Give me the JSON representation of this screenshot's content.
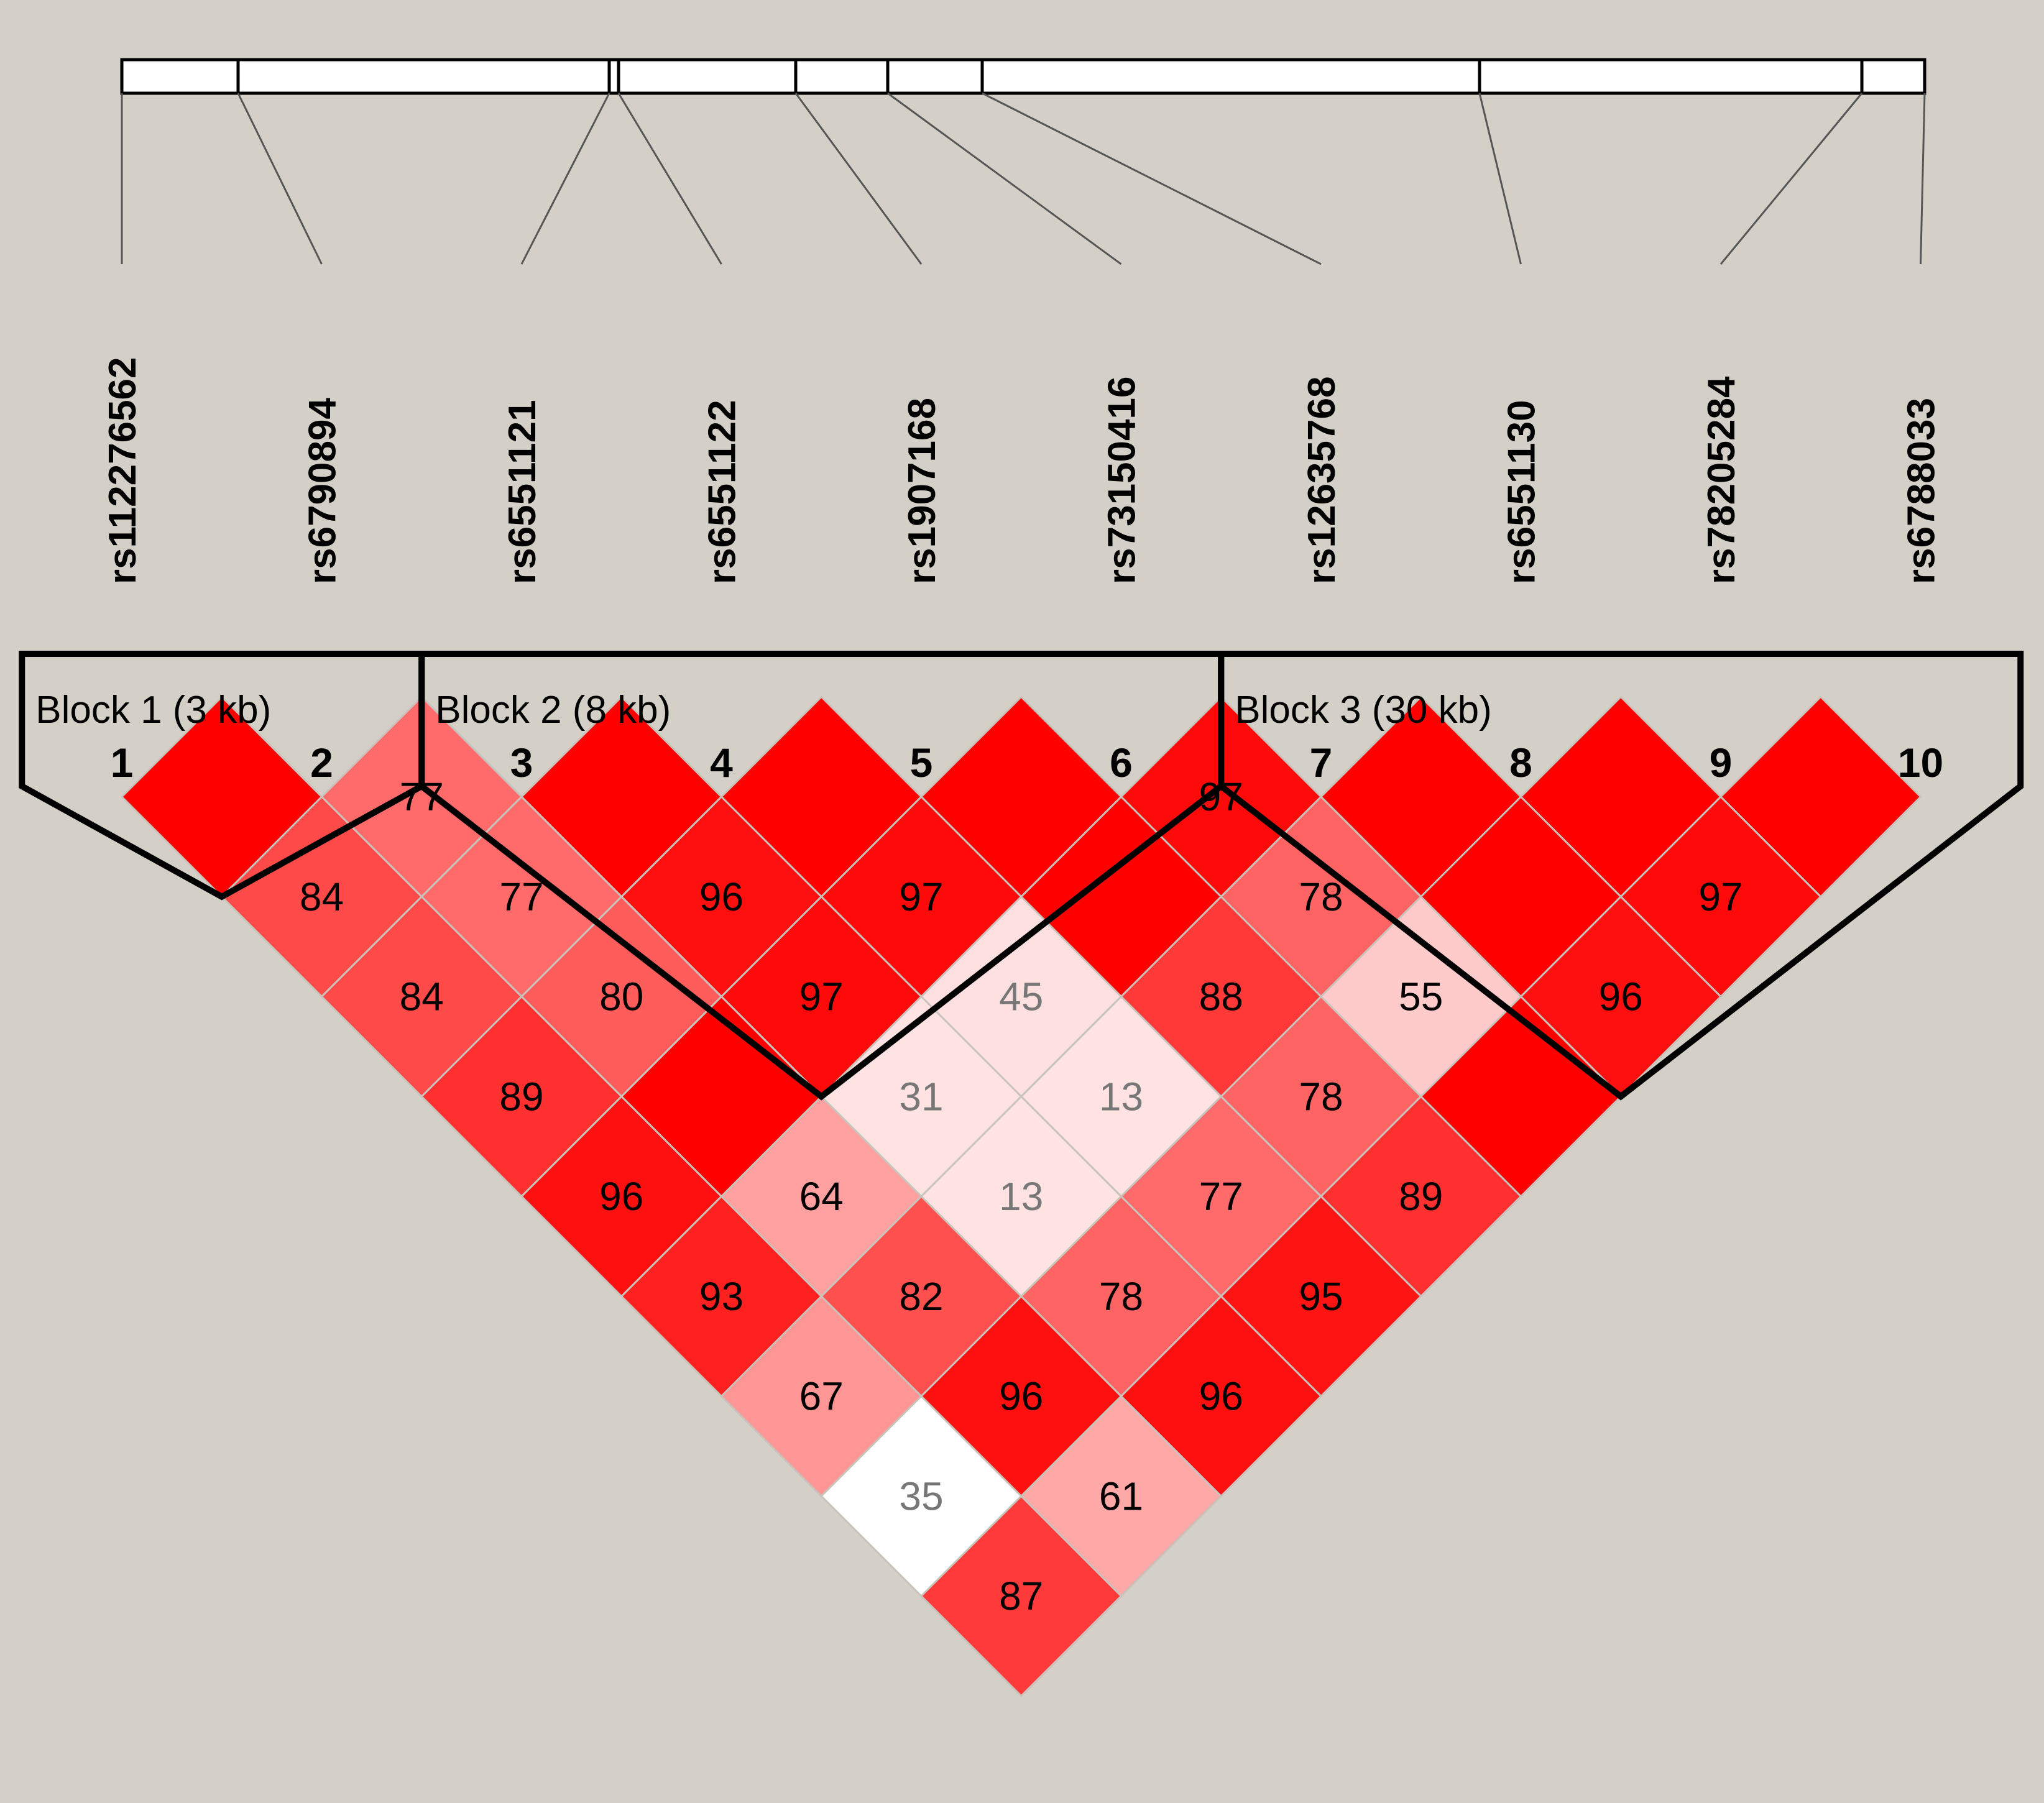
{
  "markers": [
    {
      "index": "1",
      "name": "rs112276562"
    },
    {
      "index": "2",
      "name": "rs6790894"
    },
    {
      "index": "3",
      "name": "rs6551121"
    },
    {
      "index": "4",
      "name": "rs6551122"
    },
    {
      "index": "5",
      "name": "rs1907168"
    },
    {
      "index": "6",
      "name": "rs73150416"
    },
    {
      "index": "7",
      "name": "rs12635768"
    },
    {
      "index": "8",
      "name": "rs6551130"
    },
    {
      "index": "9",
      "name": "rs78205284"
    },
    {
      "index": "10",
      "name": "rs6788033"
    }
  ],
  "blocks": [
    {
      "label": "Block 1 (3 kb)",
      "start": 1,
      "end": 2
    },
    {
      "label": "Block 2 (8 kb)",
      "start": 3,
      "end": 6
    },
    {
      "label": "Block 3 (30 kb)",
      "start": 7,
      "end": 10
    }
  ],
  "ld_matrix": [
    {
      "pair": [
        1,
        2
      ],
      "value": "",
      "color": "#ff0000"
    },
    {
      "pair": [
        2,
        3
      ],
      "value": "77",
      "color": "#ff6a6a"
    },
    {
      "pair": [
        3,
        4
      ],
      "value": "",
      "color": "#ff0000"
    },
    {
      "pair": [
        4,
        5
      ],
      "value": "",
      "color": "#ff0000"
    },
    {
      "pair": [
        5,
        6
      ],
      "value": "",
      "color": "#ff0000"
    },
    {
      "pair": [
        6,
        7
      ],
      "value": "97",
      "color": "#ff0a0a"
    },
    {
      "pair": [
        7,
        8
      ],
      "value": "",
      "color": "#ff0000"
    },
    {
      "pair": [
        8,
        9
      ],
      "value": "",
      "color": "#ff0000"
    },
    {
      "pair": [
        9,
        10
      ],
      "value": "",
      "color": "#ff0000"
    },
    {
      "pair": [
        1,
        3
      ],
      "value": "84",
      "color": "#ff4a4a"
    },
    {
      "pair": [
        2,
        4
      ],
      "value": "77",
      "color": "#ff6a6a"
    },
    {
      "pair": [
        3,
        5
      ],
      "value": "96",
      "color": "#ff1010"
    },
    {
      "pair": [
        4,
        6
      ],
      "value": "97",
      "color": "#ff0a0a"
    },
    {
      "pair": [
        5,
        7
      ],
      "value": "",
      "color": "#ff0000"
    },
    {
      "pair": [
        6,
        8
      ],
      "value": "78",
      "color": "#ff6464"
    },
    {
      "pair": [
        7,
        9
      ],
      "value": "",
      "color": "#ff0000"
    },
    {
      "pair": [
        8,
        10
      ],
      "value": "97",
      "color": "#ff0a0a"
    },
    {
      "pair": [
        1,
        4
      ],
      "value": "84",
      "color": "#ff4a4a"
    },
    {
      "pair": [
        2,
        5
      ],
      "value": "80",
      "color": "#ff5c5c"
    },
    {
      "pair": [
        3,
        6
      ],
      "value": "97",
      "color": "#ff0a0a"
    },
    {
      "pair": [
        4,
        7
      ],
      "value": "45",
      "color": "#ffe0e0"
    },
    {
      "pair": [
        5,
        8
      ],
      "value": "88",
      "color": "#ff3838"
    },
    {
      "pair": [
        6,
        9
      ],
      "value": "55",
      "color": "#ffcaca"
    },
    {
      "pair": [
        7,
        10
      ],
      "value": "96",
      "color": "#ff1010"
    },
    {
      "pair": [
        1,
        5
      ],
      "value": "89",
      "color": "#ff3030"
    },
    {
      "pair": [
        2,
        6
      ],
      "value": "",
      "color": "#ff0000"
    },
    {
      "pair": [
        3,
        7
      ],
      "value": "31",
      "color": "#ffe2e2"
    },
    {
      "pair": [
        4,
        8
      ],
      "value": "13",
      "color": "#ffe2e2"
    },
    {
      "pair": [
        5,
        9
      ],
      "value": "78",
      "color": "#ff6464"
    },
    {
      "pair": [
        6,
        10
      ],
      "value": "",
      "color": "#ff0000"
    },
    {
      "pair": [
        1,
        6
      ],
      "value": "96",
      "color": "#ff1010"
    },
    {
      "pair": [
        2,
        7
      ],
      "value": "64",
      "color": "#ffa0a0"
    },
    {
      "pair": [
        3,
        8
      ],
      "value": "13",
      "color": "#ffe2e2"
    },
    {
      "pair": [
        4,
        9
      ],
      "value": "77",
      "color": "#ff6a6a"
    },
    {
      "pair": [
        5,
        10
      ],
      "value": "89",
      "color": "#ff3030"
    },
    {
      "pair": [
        1,
        7
      ],
      "value": "93",
      "color": "#ff2020"
    },
    {
      "pair": [
        2,
        8
      ],
      "value": "82",
      "color": "#ff5050"
    },
    {
      "pair": [
        3,
        9
      ],
      "value": "78",
      "color": "#ff6464"
    },
    {
      "pair": [
        4,
        10
      ],
      "value": "95",
      "color": "#ff1414"
    },
    {
      "pair": [
        1,
        8
      ],
      "value": "67",
      "color": "#ff9696"
    },
    {
      "pair": [
        2,
        9
      ],
      "value": "96",
      "color": "#ff1010"
    },
    {
      "pair": [
        3,
        10
      ],
      "value": "96",
      "color": "#ff1010"
    },
    {
      "pair": [
        1,
        9
      ],
      "value": "35",
      "color": "#ffffff"
    },
    {
      "pair": [
        2,
        10
      ],
      "value": "61",
      "color": "#ffa8a8"
    },
    {
      "pair": [
        1,
        10
      ],
      "value": "87",
      "color": "#ff3a3a"
    }
  ],
  "colors": {
    "background": "#d4d0c8",
    "dark_text": "#000000",
    "light_text": "#777777",
    "cell_border": "#c8c4bc",
    "block_outline": "#000000"
  }
}
